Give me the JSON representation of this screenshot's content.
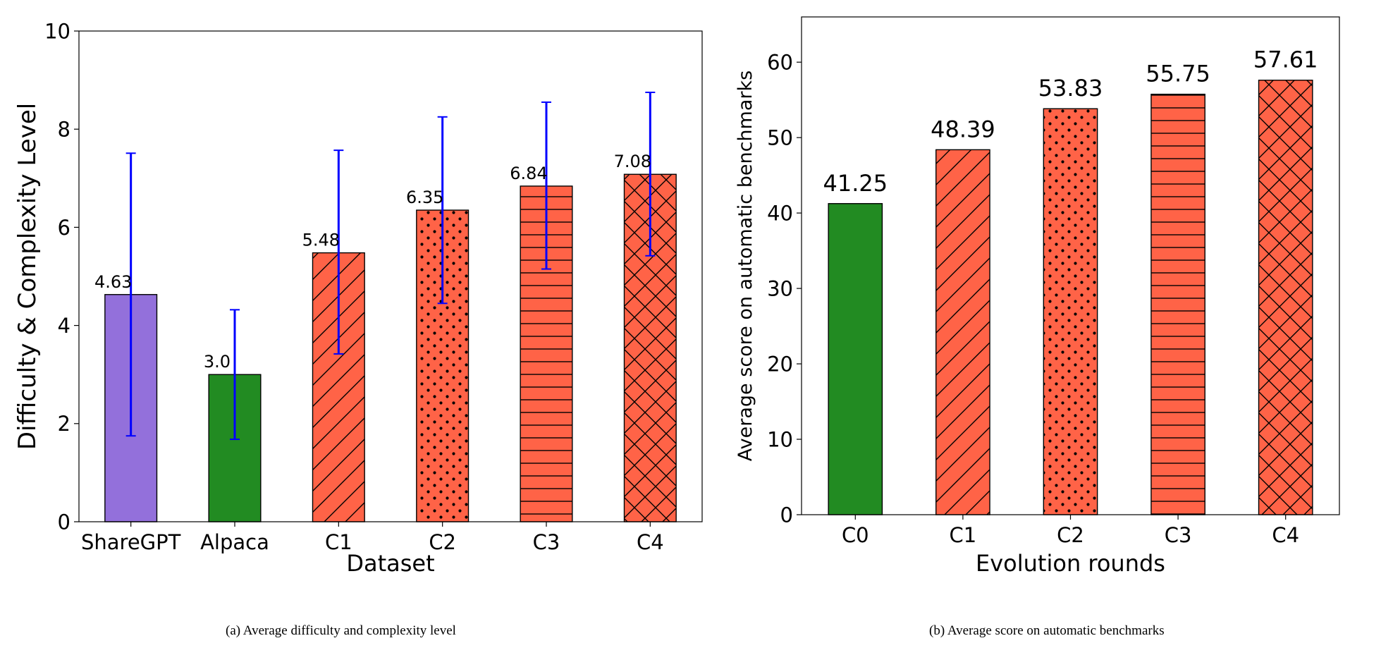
{
  "chart_data": [
    {
      "type": "bar",
      "subcaption": "(a) Average difficulty and complexity level",
      "xlabel": "Dataset",
      "ylabel": "Difficulty & Complexity Level",
      "ylim": [
        0,
        10
      ],
      "yticks": [
        0,
        2,
        4,
        6,
        8,
        10
      ],
      "categories": [
        "ShareGPT",
        "Alpaca",
        "C1",
        "C2",
        "C3",
        "C4"
      ],
      "values": [
        4.63,
        3.0,
        5.48,
        6.35,
        6.84,
        7.08
      ],
      "value_labels": [
        "4.63",
        "3.0",
        "5.48",
        "6.35",
        "6.84",
        "7.08"
      ],
      "error_low": [
        1.75,
        1.68,
        3.42,
        4.45,
        5.15,
        5.42
      ],
      "error_high": [
        7.51,
        4.32,
        7.57,
        8.25,
        8.55,
        8.75
      ],
      "bar_colors": [
        "#9370DB",
        "#228B22",
        "#FF6347",
        "#FF6347",
        "#FF6347",
        "#FF6347"
      ],
      "hatches": [
        "none",
        "none",
        "diagonal",
        "dots",
        "horizontal",
        "crosshatch"
      ],
      "error_color": "#0000FF",
      "grid": false,
      "legend": false
    },
    {
      "type": "bar",
      "subcaption": "(b) Average score on automatic benchmarks",
      "xlabel": "Evolution rounds",
      "ylabel": "Average score on automatic benchmarks",
      "ylim": [
        0,
        66
      ],
      "yticks": [
        0,
        10,
        20,
        30,
        40,
        50,
        60
      ],
      "categories": [
        "C0",
        "C1",
        "C2",
        "C3",
        "C4"
      ],
      "values": [
        41.25,
        48.39,
        53.83,
        55.75,
        57.61
      ],
      "value_labels": [
        "41.25",
        "48.39",
        "53.83",
        "55.75",
        "57.61"
      ],
      "bar_colors": [
        "#228B22",
        "#FF6347",
        "#FF6347",
        "#FF6347",
        "#FF6347"
      ],
      "hatches": [
        "none",
        "diagonal",
        "dots",
        "horizontal",
        "crosshatch"
      ],
      "grid": false,
      "legend": false
    }
  ]
}
